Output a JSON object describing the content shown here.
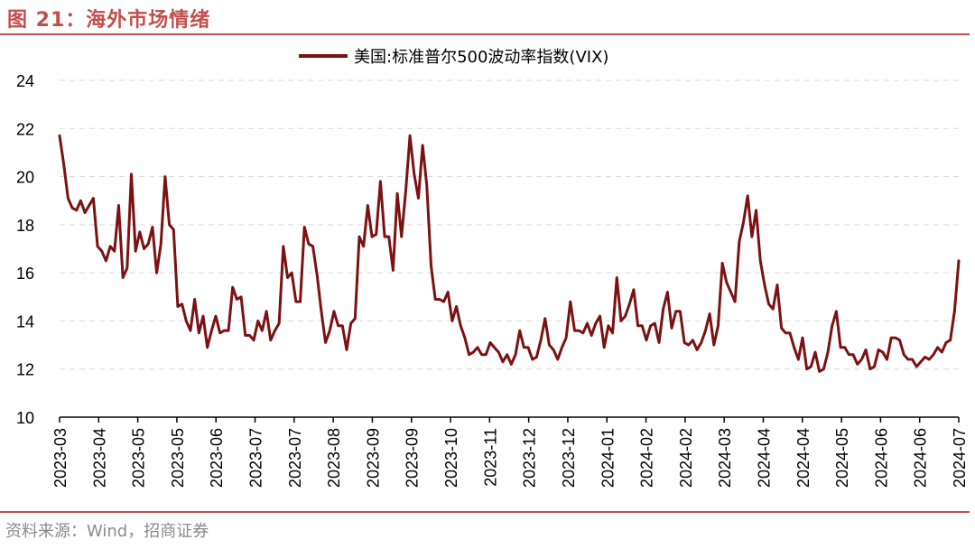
{
  "figure": {
    "title": "图 21：海外市场情绪",
    "source": "资料来源：Wind，招商证券"
  },
  "colors": {
    "accent": "#C0504D",
    "series": "#7B1112",
    "grid": "#d9d9d9"
  },
  "chart_data": {
    "type": "line",
    "title": "",
    "xlabel": "",
    "ylabel": "",
    "ylim": [
      10,
      24
    ],
    "yticks": [
      10,
      12,
      14,
      16,
      18,
      20,
      22,
      24
    ],
    "grid": true,
    "legend_position": "top-center",
    "x_tick_labels": [
      "2023-03",
      "2023-04",
      "2023-05",
      "2023-05",
      "2023-06",
      "2023-07",
      "2023-07",
      "2023-08",
      "2023-09",
      "2023-09",
      "2023-10",
      "2023-11",
      "2023-12",
      "2023-12",
      "2024-01",
      "2024-02",
      "2024-02",
      "2024-03",
      "2024-04",
      "2024-04",
      "2024-05",
      "2024-06",
      "2024-06",
      "2024-07"
    ],
    "series": [
      {
        "name": "美国:标准普尔500波动率指数(VIX)",
        "values": [
          21.7,
          20.5,
          19.1,
          18.7,
          18.6,
          19.0,
          18.5,
          18.8,
          19.1,
          17.1,
          16.9,
          16.5,
          17.1,
          16.9,
          18.8,
          15.8,
          16.2,
          20.1,
          16.9,
          17.7,
          17.0,
          17.2,
          17.9,
          16.0,
          17.2,
          20.0,
          18.0,
          17.8,
          14.6,
          14.7,
          14.0,
          13.6,
          14.9,
          13.5,
          14.2,
          12.9,
          13.6,
          14.2,
          13.5,
          13.6,
          13.6,
          15.4,
          14.9,
          15.0,
          13.4,
          13.4,
          13.2,
          14.0,
          13.6,
          14.4,
          13.2,
          13.6,
          13.9,
          17.1,
          15.8,
          16.0,
          14.8,
          14.8,
          17.9,
          17.2,
          17.1,
          15.9,
          14.4,
          13.1,
          13.6,
          14.4,
          13.8,
          13.8,
          12.8,
          13.9,
          14.1,
          17.5,
          17.1,
          18.8,
          17.5,
          17.6,
          19.8,
          17.5,
          17.5,
          16.1,
          19.3,
          17.5,
          19.4,
          21.7,
          20.1,
          19.1,
          21.3,
          19.6,
          16.3,
          14.9,
          14.9,
          14.8,
          15.2,
          14.0,
          14.6,
          13.8,
          13.3,
          12.6,
          12.7,
          12.9,
          12.6,
          12.6,
          13.1,
          12.9,
          12.7,
          12.3,
          12.6,
          12.2,
          12.6,
          13.6,
          12.9,
          12.9,
          12.4,
          12.5,
          13.2,
          14.1,
          13.0,
          12.8,
          12.4,
          12.9,
          13.3,
          14.8,
          13.6,
          13.6,
          13.5,
          13.9,
          13.4,
          13.9,
          14.2,
          12.9,
          13.8,
          13.5,
          15.8,
          14.0,
          14.2,
          14.7,
          15.3,
          13.8,
          13.8,
          13.2,
          13.8,
          13.9,
          13.1,
          14.5,
          15.2,
          13.7,
          14.4,
          14.4,
          13.1,
          13.0,
          13.2,
          12.8,
          13.1,
          13.6,
          14.3,
          13.0,
          13.8,
          16.4,
          15.6,
          15.2,
          14.8,
          17.3,
          18.1,
          19.2,
          17.5,
          18.6,
          16.5,
          15.5,
          14.7,
          14.5,
          15.5,
          13.7,
          13.5,
          13.5,
          12.9,
          12.4,
          13.3,
          12.0,
          12.1,
          12.7,
          11.9,
          12.0,
          12.7,
          13.8,
          14.4,
          12.9,
          12.9,
          12.6,
          12.6,
          12.2,
          12.4,
          12.8,
          12.0,
          12.1,
          12.8,
          12.7,
          12.4,
          13.3,
          13.3,
          13.2,
          12.6,
          12.4,
          12.4,
          12.1,
          12.3,
          12.5,
          12.4,
          12.6,
          12.9,
          12.7,
          13.1,
          13.2,
          14.4,
          16.5
        ]
      }
    ]
  }
}
